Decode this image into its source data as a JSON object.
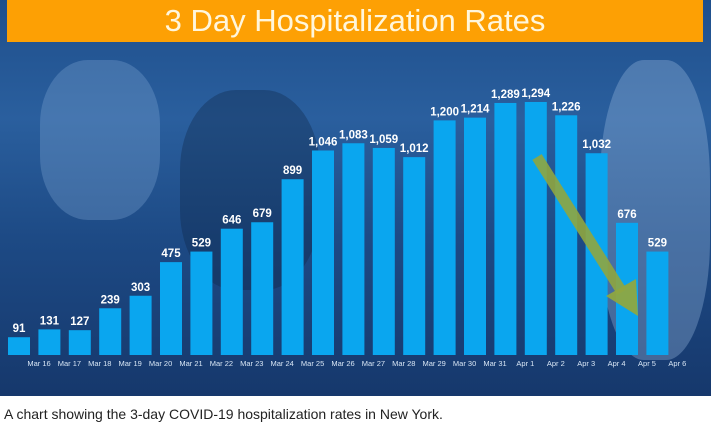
{
  "chart_data": {
    "type": "bar",
    "title": "3 Day Hospitalization Rates",
    "categories": [
      "Mar 16",
      "Mar 17",
      "Mar 18",
      "Mar 19",
      "Mar 20",
      "Mar 21",
      "Mar 22",
      "Mar 23",
      "Mar 24",
      "Mar 25",
      "Mar 26",
      "Mar 27",
      "Mar 28",
      "Mar 29",
      "Mar 30",
      "Mar 31",
      "Apr 1",
      "Apr 2",
      "Apr 3",
      "Apr 4",
      "Apr 5",
      "Apr 6"
    ],
    "values": [
      91,
      131,
      127,
      239,
      303,
      475,
      529,
      646,
      679,
      899,
      1046,
      1083,
      1059,
      1012,
      1200,
      1214,
      1289,
      1294,
      1226,
      1032,
      676,
      529
    ],
    "value_labels": [
      "91",
      "131",
      "127",
      "239",
      "303",
      "475",
      "529",
      "646",
      "679",
      "899",
      "1,046",
      "1,083",
      "1,059",
      "1,012",
      "1,200",
      "1,214",
      "1,289",
      "1,294",
      "1,226",
      "1,032",
      "676",
      "529"
    ],
    "xlabel": "",
    "ylabel": "",
    "ylim": [
      0,
      1300
    ],
    "grid": false,
    "annotation": "downward arrow from Apr 2 to Apr 5",
    "colors": {
      "bar": "#0aa6ef",
      "title_bg": "#fda004",
      "arrow": "#8fa640",
      "background": "#214f8a"
    }
  },
  "caption": "A chart showing the 3-day COVID-19 hospitalization rates in New York."
}
